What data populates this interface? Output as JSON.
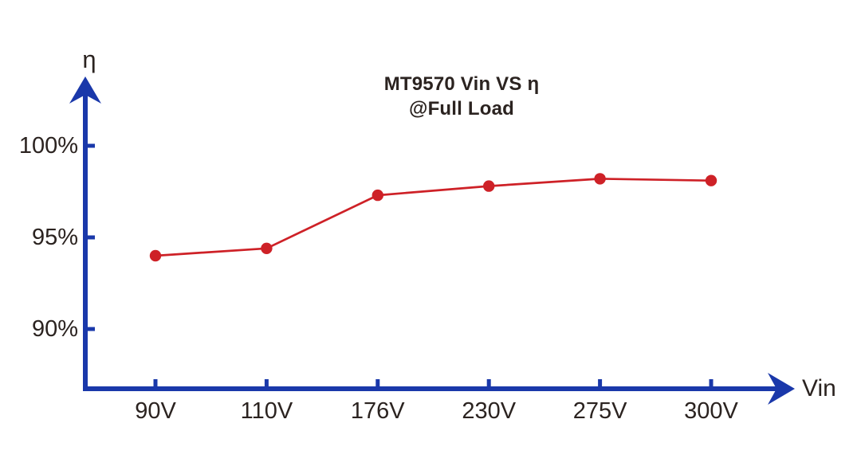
{
  "chart_data": {
    "type": "line",
    "title": "MT9570 Vin VS η",
    "subtitle": "@Full Load",
    "x_axis_label": "Vin",
    "y_axis_label": "η",
    "categories": [
      "90V",
      "110V",
      "176V",
      "230V",
      "275V",
      "300V"
    ],
    "series": [
      {
        "name": "efficiency",
        "values": [
          94.0,
          94.4,
          97.3,
          97.8,
          98.2,
          98.1
        ]
      }
    ],
    "y_ticks": [
      {
        "label": "100%",
        "value": 100
      },
      {
        "label": "95%",
        "value": 95
      },
      {
        "label": "90%",
        "value": 90
      }
    ],
    "ylim": [
      87,
      104
    ],
    "grid": false,
    "legend": "none",
    "colors": {
      "axis": "#1A38AA",
      "series": "#CE2127",
      "text": "#2B2320",
      "background": "#FFFFFF"
    }
  }
}
